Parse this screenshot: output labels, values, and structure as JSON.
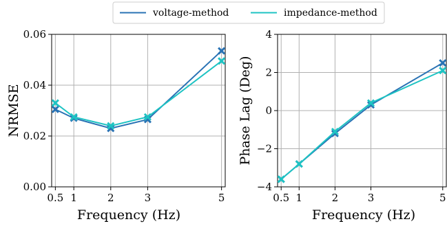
{
  "legend": {
    "placement": "top-center",
    "entries": [
      {
        "label": "voltage-method",
        "color": "#2872b4"
      },
      {
        "label": "impedance-method",
        "color": "#1ec3c3"
      }
    ]
  },
  "chart_data": [
    {
      "type": "line",
      "title": "",
      "xlabel": "Frequency (Hz)",
      "ylabel": "NRMSE",
      "x": [
        0.5,
        1,
        2,
        3,
        5
      ],
      "x_tick_labels": [
        "0.5",
        "1",
        "2",
        "3",
        "5"
      ],
      "xlim": [
        0.4,
        5.1
      ],
      "ylim": [
        0,
        0.06
      ],
      "y_ticks": [
        0,
        0.02,
        0.04,
        0.06
      ],
      "y_tick_labels": [
        "0.00",
        "0.02",
        "0.04",
        "0.06"
      ],
      "grid": true,
      "series": [
        {
          "name": "voltage-method",
          "color": "#2872b4",
          "marker": "x",
          "values": [
            0.0305,
            0.027,
            0.023,
            0.0265,
            0.0535
          ]
        },
        {
          "name": "impedance-method",
          "color": "#1ec3c3",
          "marker": "x",
          "values": [
            0.033,
            0.0275,
            0.024,
            0.0275,
            0.0495
          ]
        }
      ]
    },
    {
      "type": "line",
      "title": "",
      "xlabel": "Frequency (Hz)",
      "ylabel": "Phase Lag (Deg)",
      "x": [
        0.5,
        1,
        2,
        3,
        5
      ],
      "x_tick_labels": [
        "0.5",
        "1",
        "2",
        "3",
        "5"
      ],
      "xlim": [
        0.4,
        5.1
      ],
      "ylim": [
        -4,
        4
      ],
      "y_ticks": [
        -4,
        -2,
        0,
        2,
        4
      ],
      "y_tick_labels": [
        "−4",
        "−2",
        "0",
        "2",
        "4"
      ],
      "grid": true,
      "series": [
        {
          "name": "voltage-method",
          "color": "#2872b4",
          "marker": "x",
          "values": [
            -3.6,
            -2.8,
            -1.2,
            0.3,
            2.5
          ]
        },
        {
          "name": "impedance-method",
          "color": "#1ec3c3",
          "marker": "x",
          "values": [
            -3.6,
            -2.8,
            -1.1,
            0.4,
            2.1
          ]
        }
      ]
    }
  ]
}
